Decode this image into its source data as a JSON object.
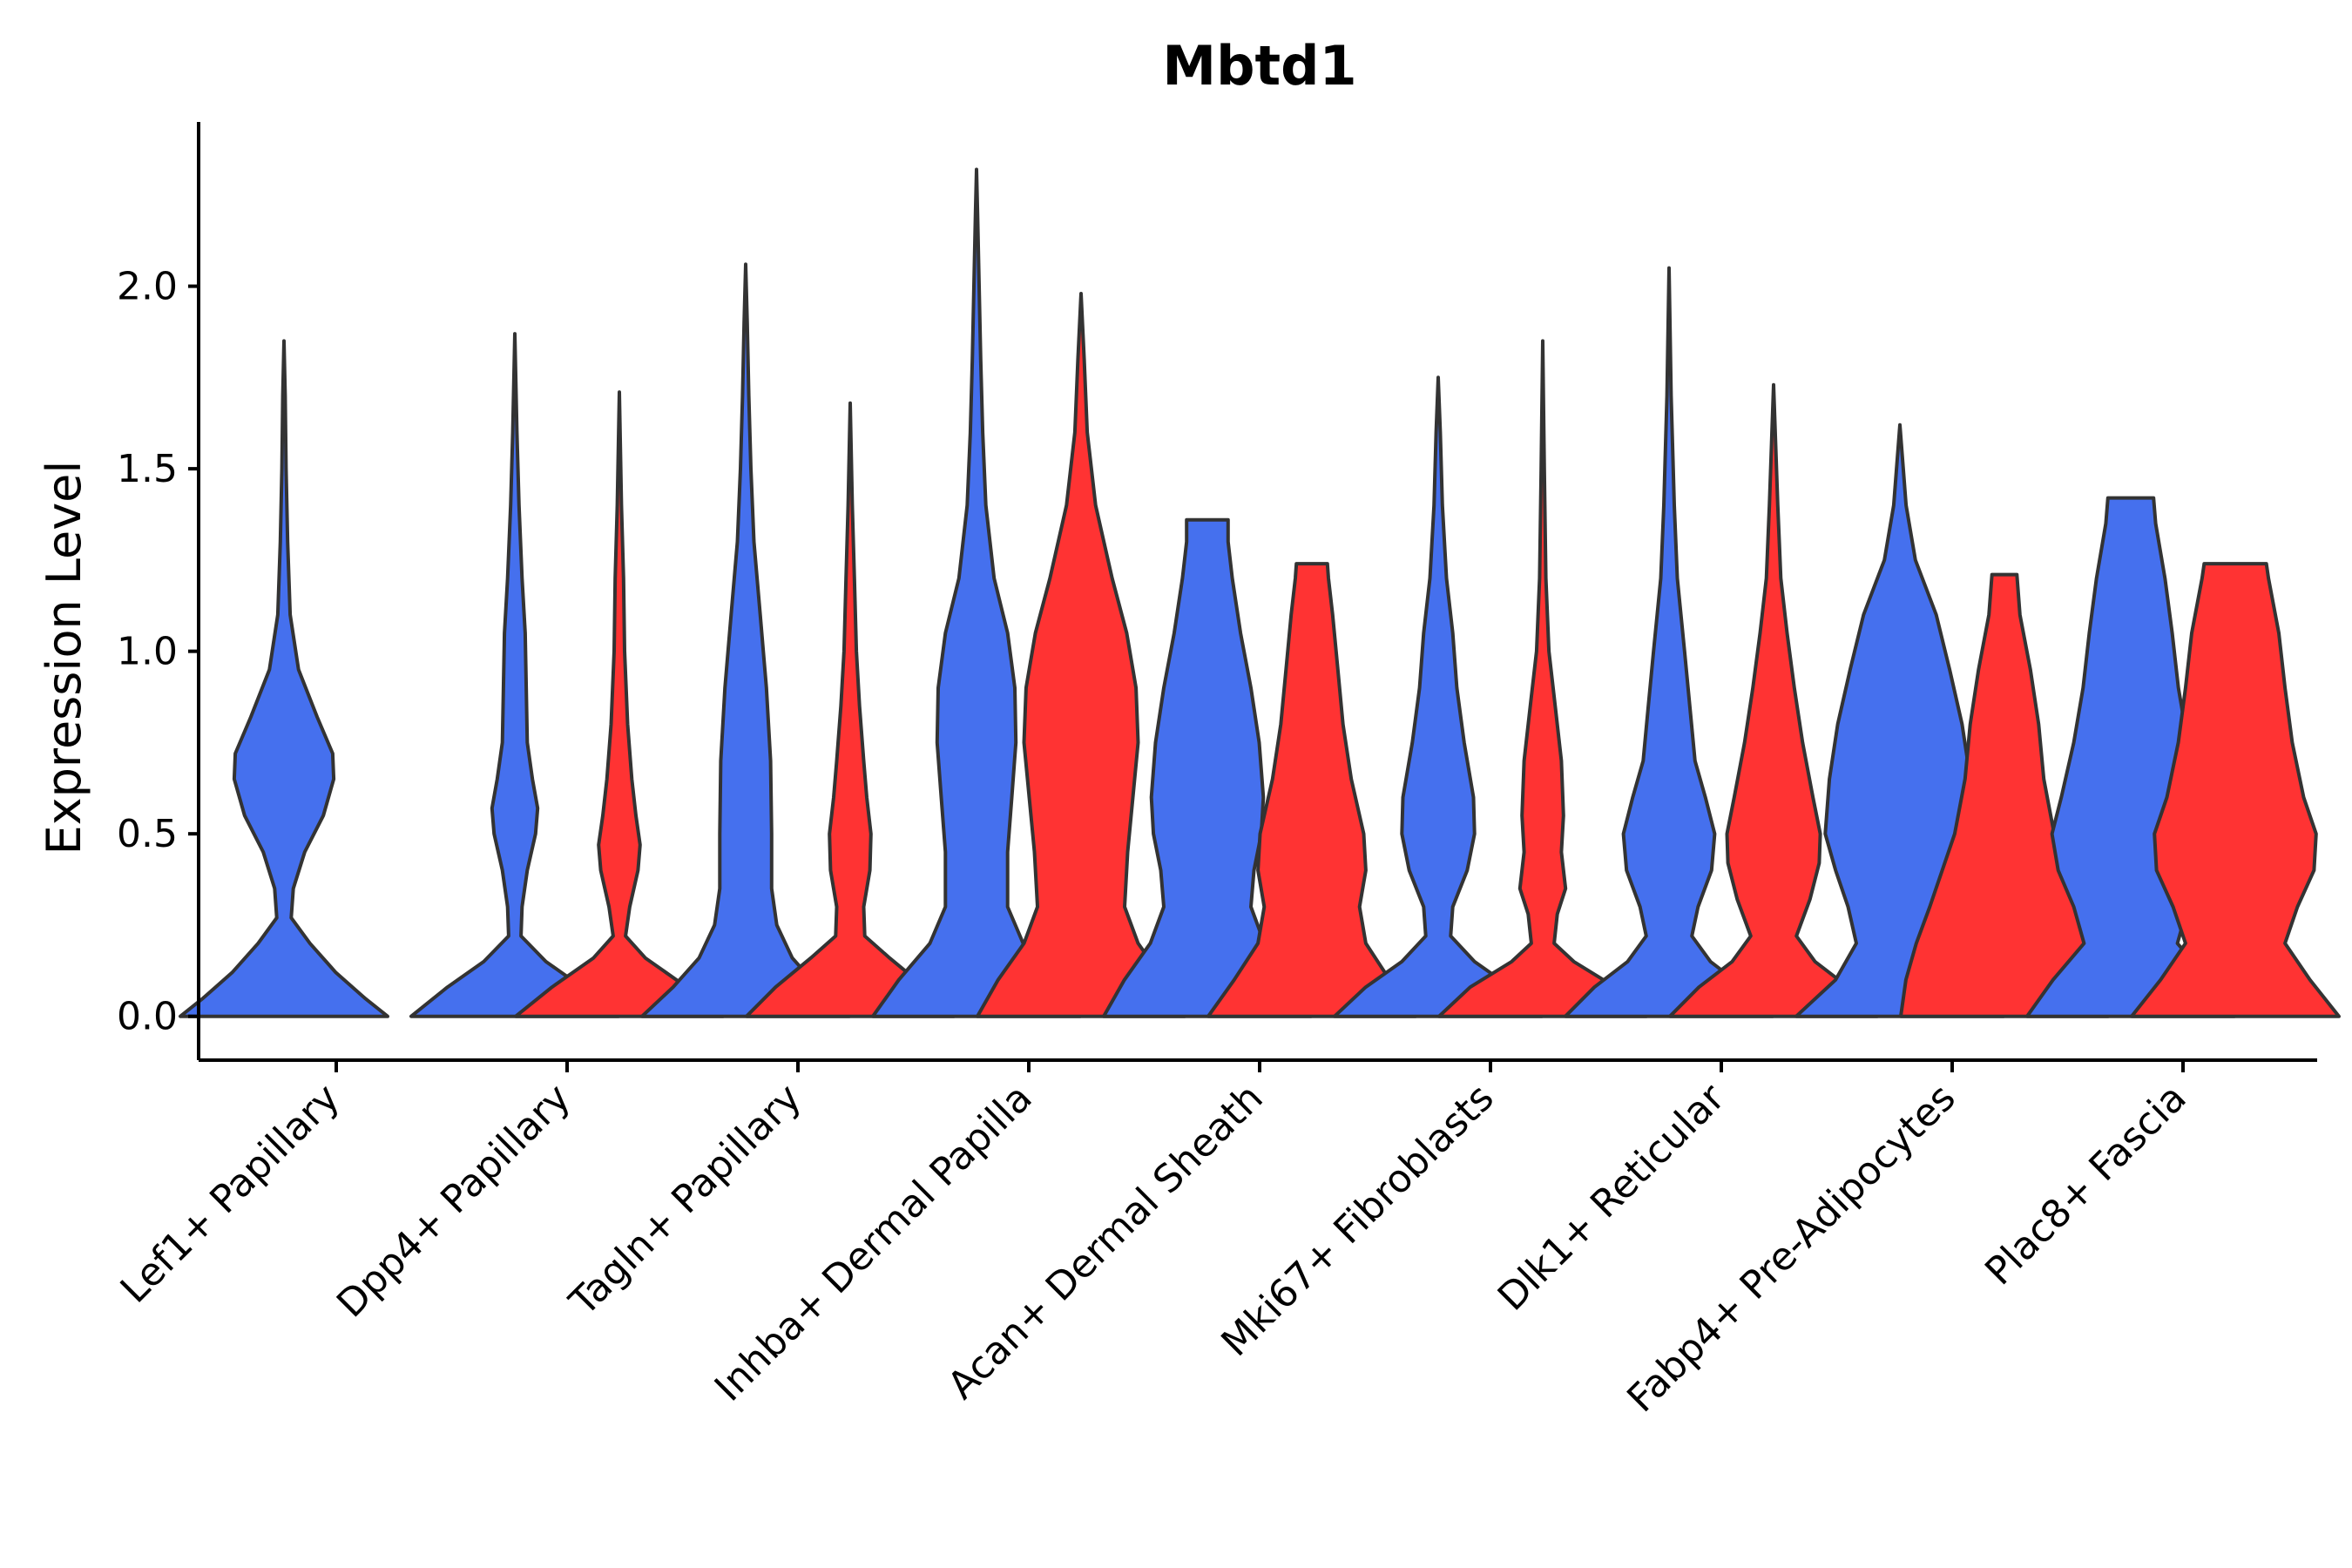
{
  "chart_data": {
    "type": "violin",
    "title": "Mbtd1",
    "xlabel": "",
    "ylabel": "Expression Level",
    "ylim": [
      -0.12,
      2.45
    ],
    "yticks": [
      0.0,
      0.5,
      1.0,
      1.5,
      2.0
    ],
    "ytick_labels": [
      "0.0",
      "0.5",
      "1.0",
      "1.5",
      "2.0"
    ],
    "colors": {
      "group1": "#4570EE",
      "group2": "#FF3333"
    },
    "categories": [
      "Lef1+ Papillary",
      "Dpp4+ Papillary",
      "Tagln+ Papillary",
      "Inhba+ Dermal Papilla",
      "Acan+ Dermal Sheath",
      "Mki67+ Fibroblasts",
      "Dlk1+ Reticular",
      "Fabp4+ Pre-Adipocytes",
      "Plac8+ Fascia"
    ],
    "violins": [
      {
        "category": "Lef1+ Papillary",
        "group": "group1",
        "max": 1.85,
        "profile": [
          [
            0.0,
            1.0
          ],
          [
            0.05,
            0.78
          ],
          [
            0.12,
            0.5
          ],
          [
            0.2,
            0.25
          ],
          [
            0.27,
            0.07
          ],
          [
            0.35,
            0.09
          ],
          [
            0.45,
            0.2
          ],
          [
            0.55,
            0.38
          ],
          [
            0.65,
            0.48
          ],
          [
            0.72,
            0.47
          ],
          [
            0.82,
            0.32
          ],
          [
            0.95,
            0.14
          ],
          [
            1.1,
            0.06
          ],
          [
            1.3,
            0.035
          ],
          [
            1.5,
            0.02
          ],
          [
            1.7,
            0.012
          ],
          [
            1.85,
            0.0
          ]
        ]
      },
      {
        "category": "Dpp4+ Papillary",
        "group": "group1",
        "max": 1.87,
        "profile": [
          [
            0.0,
            1.0
          ],
          [
            0.08,
            0.65
          ],
          [
            0.15,
            0.3
          ],
          [
            0.22,
            0.06
          ],
          [
            0.3,
            0.07
          ],
          [
            0.4,
            0.12
          ],
          [
            0.5,
            0.2
          ],
          [
            0.57,
            0.22
          ],
          [
            0.65,
            0.17
          ],
          [
            0.75,
            0.12
          ],
          [
            0.9,
            0.11
          ],
          [
            1.05,
            0.1
          ],
          [
            1.2,
            0.07
          ],
          [
            1.4,
            0.04
          ],
          [
            1.6,
            0.02
          ],
          [
            1.87,
            0.0
          ]
        ]
      },
      {
        "category": "Dpp4+ Papillary",
        "group": "group2",
        "max": 1.71,
        "profile": [
          [
            0.0,
            1.0
          ],
          [
            0.08,
            0.65
          ],
          [
            0.16,
            0.25
          ],
          [
            0.22,
            0.06
          ],
          [
            0.3,
            0.1
          ],
          [
            0.4,
            0.18
          ],
          [
            0.47,
            0.2
          ],
          [
            0.55,
            0.16
          ],
          [
            0.65,
            0.12
          ],
          [
            0.8,
            0.08
          ],
          [
            1.0,
            0.05
          ],
          [
            1.2,
            0.04
          ],
          [
            1.4,
            0.02
          ],
          [
            1.71,
            0.0
          ]
        ]
      },
      {
        "category": "Tagln+ Papillary",
        "group": "group1",
        "max": 2.06,
        "profile": [
          [
            0.0,
            1.0
          ],
          [
            0.08,
            0.7
          ],
          [
            0.16,
            0.45
          ],
          [
            0.25,
            0.3
          ],
          [
            0.35,
            0.25
          ],
          [
            0.5,
            0.25
          ],
          [
            0.7,
            0.24
          ],
          [
            0.9,
            0.2
          ],
          [
            1.1,
            0.14
          ],
          [
            1.3,
            0.08
          ],
          [
            1.5,
            0.05
          ],
          [
            1.7,
            0.03
          ],
          [
            1.9,
            0.015
          ],
          [
            2.06,
            0.0
          ]
        ]
      },
      {
        "category": "Tagln+ Papillary",
        "group": "group2",
        "max": 1.68,
        "profile": [
          [
            0.0,
            1.0
          ],
          [
            0.08,
            0.72
          ],
          [
            0.16,
            0.38
          ],
          [
            0.22,
            0.14
          ],
          [
            0.3,
            0.13
          ],
          [
            0.4,
            0.19
          ],
          [
            0.5,
            0.2
          ],
          [
            0.6,
            0.16
          ],
          [
            0.7,
            0.13
          ],
          [
            0.85,
            0.09
          ],
          [
            1.0,
            0.06
          ],
          [
            1.2,
            0.04
          ],
          [
            1.4,
            0.02
          ],
          [
            1.68,
            0.0
          ]
        ]
      },
      {
        "category": "Inhba+ Dermal Papilla",
        "group": "group1",
        "max": 2.32,
        "profile": [
          [
            0.0,
            1.0
          ],
          [
            0.1,
            0.75
          ],
          [
            0.2,
            0.45
          ],
          [
            0.3,
            0.3
          ],
          [
            0.45,
            0.3
          ],
          [
            0.6,
            0.34
          ],
          [
            0.75,
            0.38
          ],
          [
            0.9,
            0.37
          ],
          [
            1.05,
            0.3
          ],
          [
            1.2,
            0.17
          ],
          [
            1.4,
            0.09
          ],
          [
            1.6,
            0.06
          ],
          [
            1.8,
            0.04
          ],
          [
            2.0,
            0.025
          ],
          [
            2.2,
            0.01
          ],
          [
            2.32,
            0.0
          ]
        ]
      },
      {
        "category": "Inhba+ Dermal Papilla",
        "group": "group2",
        "max": 1.98,
        "profile": [
          [
            0.0,
            1.0
          ],
          [
            0.1,
            0.8
          ],
          [
            0.2,
            0.55
          ],
          [
            0.3,
            0.42
          ],
          [
            0.45,
            0.45
          ],
          [
            0.6,
            0.5
          ],
          [
            0.75,
            0.55
          ],
          [
            0.9,
            0.53
          ],
          [
            1.05,
            0.44
          ],
          [
            1.2,
            0.3
          ],
          [
            1.4,
            0.14
          ],
          [
            1.6,
            0.06
          ],
          [
            1.8,
            0.03
          ],
          [
            1.98,
            0.0
          ]
        ]
      },
      {
        "category": "Acan+ Dermal Sheath",
        "group": "group1",
        "max": 1.36,
        "profile": [
          [
            0.0,
            1.0
          ],
          [
            0.1,
            0.8
          ],
          [
            0.2,
            0.55
          ],
          [
            0.3,
            0.42
          ],
          [
            0.4,
            0.45
          ],
          [
            0.5,
            0.52
          ],
          [
            0.6,
            0.54
          ],
          [
            0.75,
            0.5
          ],
          [
            0.9,
            0.42
          ],
          [
            1.05,
            0.32
          ],
          [
            1.2,
            0.24
          ],
          [
            1.3,
            0.2
          ],
          [
            1.36,
            0.2
          ],
          [
            1.36,
            0.0
          ]
        ]
      },
      {
        "category": "Acan+ Dermal Sheath",
        "group": "group2",
        "max": 1.24,
        "profile": [
          [
            0.0,
            1.0
          ],
          [
            0.1,
            0.75
          ],
          [
            0.2,
            0.52
          ],
          [
            0.3,
            0.46
          ],
          [
            0.4,
            0.52
          ],
          [
            0.5,
            0.5
          ],
          [
            0.65,
            0.38
          ],
          [
            0.8,
            0.3
          ],
          [
            0.95,
            0.25
          ],
          [
            1.1,
            0.2
          ],
          [
            1.2,
            0.16
          ],
          [
            1.24,
            0.15
          ],
          [
            1.24,
            0.0
          ]
        ]
      },
      {
        "category": "Mki67+ Fibroblasts",
        "group": "group1",
        "max": 1.75,
        "profile": [
          [
            0.0,
            1.0
          ],
          [
            0.08,
            0.7
          ],
          [
            0.15,
            0.35
          ],
          [
            0.22,
            0.12
          ],
          [
            0.3,
            0.14
          ],
          [
            0.4,
            0.28
          ],
          [
            0.5,
            0.35
          ],
          [
            0.6,
            0.34
          ],
          [
            0.75,
            0.25
          ],
          [
            0.9,
            0.18
          ],
          [
            1.05,
            0.14
          ],
          [
            1.2,
            0.08
          ],
          [
            1.4,
            0.04
          ],
          [
            1.6,
            0.02
          ],
          [
            1.75,
            0.0
          ]
        ]
      },
      {
        "category": "Mki67+ Fibroblasts",
        "group": "group2",
        "max": 1.85,
        "profile": [
          [
            0.0,
            1.0
          ],
          [
            0.08,
            0.7
          ],
          [
            0.15,
            0.3
          ],
          [
            0.2,
            0.11
          ],
          [
            0.28,
            0.14
          ],
          [
            0.35,
            0.22
          ],
          [
            0.45,
            0.18
          ],
          [
            0.55,
            0.2
          ],
          [
            0.7,
            0.18
          ],
          [
            0.85,
            0.12
          ],
          [
            1.0,
            0.06
          ],
          [
            1.2,
            0.03
          ],
          [
            1.5,
            0.015
          ],
          [
            1.85,
            0.0
          ]
        ]
      },
      {
        "category": "Dlk1+ Reticular",
        "group": "group1",
        "max": 2.05,
        "profile": [
          [
            0.0,
            1.0
          ],
          [
            0.08,
            0.72
          ],
          [
            0.15,
            0.4
          ],
          [
            0.22,
            0.22
          ],
          [
            0.3,
            0.28
          ],
          [
            0.4,
            0.41
          ],
          [
            0.5,
            0.44
          ],
          [
            0.6,
            0.35
          ],
          [
            0.7,
            0.25
          ],
          [
            0.85,
            0.2
          ],
          [
            1.0,
            0.15
          ],
          [
            1.2,
            0.08
          ],
          [
            1.4,
            0.05
          ],
          [
            1.7,
            0.02
          ],
          [
            2.05,
            0.0
          ]
        ]
      },
      {
        "category": "Dlk1+ Reticular",
        "group": "group2",
        "max": 1.73,
        "profile": [
          [
            0.0,
            1.0
          ],
          [
            0.08,
            0.72
          ],
          [
            0.15,
            0.4
          ],
          [
            0.22,
            0.22
          ],
          [
            0.32,
            0.35
          ],
          [
            0.42,
            0.44
          ],
          [
            0.5,
            0.45
          ],
          [
            0.6,
            0.38
          ],
          [
            0.75,
            0.28
          ],
          [
            0.9,
            0.2
          ],
          [
            1.05,
            0.13
          ],
          [
            1.2,
            0.07
          ],
          [
            1.4,
            0.04
          ],
          [
            1.73,
            0.0
          ]
        ]
      },
      {
        "category": "Fabp4+ Pre-Adipocytes",
        "group": "group1",
        "max": 1.62,
        "profile": [
          [
            0.0,
            1.0
          ],
          [
            0.1,
            0.62
          ],
          [
            0.2,
            0.42
          ],
          [
            0.3,
            0.5
          ],
          [
            0.4,
            0.62
          ],
          [
            0.5,
            0.72
          ],
          [
            0.65,
            0.68
          ],
          [
            0.8,
            0.6
          ],
          [
            0.95,
            0.48
          ],
          [
            1.1,
            0.35
          ],
          [
            1.25,
            0.15
          ],
          [
            1.4,
            0.06
          ],
          [
            1.62,
            0.0
          ]
        ]
      },
      {
        "category": "Fabp4+ Pre-Adipocytes",
        "group": "group2",
        "max": 1.21,
        "profile": [
          [
            0.0,
            1.0
          ],
          [
            0.1,
            0.95
          ],
          [
            0.2,
            0.85
          ],
          [
            0.3,
            0.72
          ],
          [
            0.4,
            0.6
          ],
          [
            0.5,
            0.48
          ],
          [
            0.65,
            0.38
          ],
          [
            0.8,
            0.33
          ],
          [
            0.95,
            0.25
          ],
          [
            1.1,
            0.15
          ],
          [
            1.21,
            0.12
          ],
          [
            1.21,
            0.0
          ]
        ]
      },
      {
        "category": "Plac8+ Fascia",
        "group": "group1",
        "max": 1.42,
        "profile": [
          [
            0.0,
            1.0
          ],
          [
            0.1,
            0.75
          ],
          [
            0.2,
            0.45
          ],
          [
            0.3,
            0.55
          ],
          [
            0.4,
            0.7
          ],
          [
            0.5,
            0.76
          ],
          [
            0.6,
            0.67
          ],
          [
            0.75,
            0.55
          ],
          [
            0.9,
            0.46
          ],
          [
            1.05,
            0.4
          ],
          [
            1.2,
            0.33
          ],
          [
            1.35,
            0.24
          ],
          [
            1.42,
            0.22
          ],
          [
            1.42,
            0.0
          ]
        ]
      },
      {
        "category": "Plac8+ Fascia",
        "group": "group2",
        "max": 1.24,
        "profile": [
          [
            0.0,
            1.0
          ],
          [
            0.1,
            0.72
          ],
          [
            0.2,
            0.48
          ],
          [
            0.3,
            0.6
          ],
          [
            0.4,
            0.76
          ],
          [
            0.5,
            0.78
          ],
          [
            0.6,
            0.66
          ],
          [
            0.75,
            0.55
          ],
          [
            0.9,
            0.48
          ],
          [
            1.05,
            0.42
          ],
          [
            1.2,
            0.32
          ],
          [
            1.24,
            0.3
          ],
          [
            1.24,
            0.0
          ]
        ]
      }
    ]
  }
}
